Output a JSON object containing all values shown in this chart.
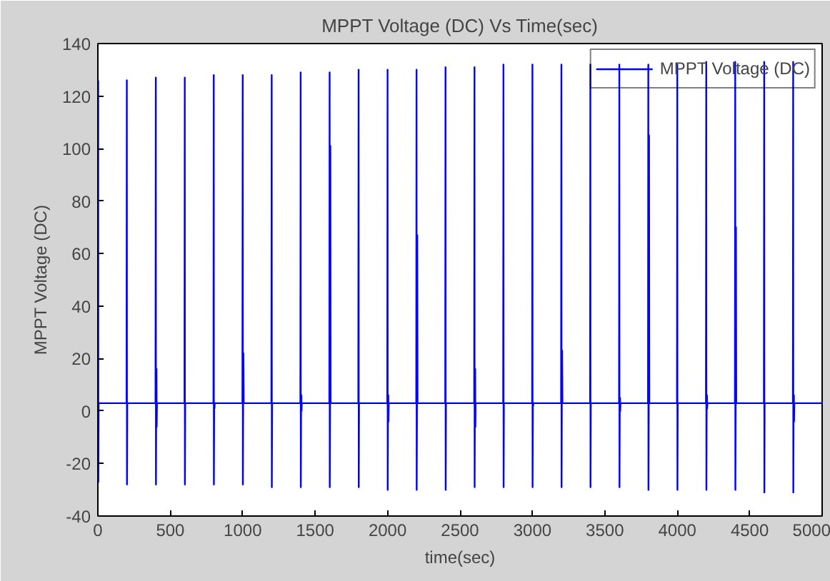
{
  "chart_data": {
    "type": "line",
    "title": "MPPT Voltage (DC) Vs Time(sec)",
    "xlabel": "time(sec)",
    "ylabel": "MPPT Voltage (DC)",
    "x": [
      2,
      3,
      5,
      198,
      200,
      201,
      203,
      398,
      400,
      401,
      403,
      405,
      406,
      408,
      598,
      600,
      601,
      603,
      798,
      800,
      801,
      803,
      805,
      807,
      998,
      1000,
      1001,
      1003,
      1005,
      1007,
      1198,
      1200,
      1201,
      1203,
      1398,
      1400,
      1401,
      1403,
      1405,
      1406,
      1408,
      1598,
      1600,
      1601,
      1603,
      1605,
      1607,
      1798,
      1800,
      1801,
      1803,
      1998,
      2000,
      2001,
      2003,
      2005,
      2006,
      2008,
      2198,
      2200,
      2201,
      2203,
      2205,
      2207,
      2398,
      2400,
      2401,
      2403,
      2598,
      2600,
      2601,
      2603,
      2605,
      2606,
      2608,
      2798,
      2800,
      2801,
      2803,
      2998,
      3000,
      3001,
      3003,
      3005,
      3007,
      3198,
      3200,
      3201,
      3203,
      3205,
      3207,
      3398,
      3400,
      3401,
      3403,
      3598,
      3600,
      3601,
      3603,
      3605,
      3606,
      3608,
      3798,
      3800,
      3801,
      3803,
      3805,
      3807,
      3998,
      4000,
      4001,
      4003,
      4198,
      4200,
      4201,
      4203,
      4205,
      4206,
      4208,
      4398,
      4400,
      4401,
      4403,
      4405,
      4407,
      4598,
      4600,
      4601,
      4603,
      4798,
      4800,
      4801,
      4803,
      4805,
      4806,
      4808,
      5000
    ],
    "series": [
      {
        "name": "MPPT Voltage (DC)",
        "color": "#0000ff",
        "values": [
          126,
          -27,
          3,
          3,
          126,
          -28,
          3,
          3,
          127,
          -28,
          3,
          16,
          -6,
          3,
          3,
          127,
          -28,
          3,
          3,
          128,
          -28,
          3,
          1,
          3,
          3,
          128,
          -28,
          3,
          22,
          3,
          3,
          128,
          -29,
          3,
          3,
          129,
          -29,
          3,
          6,
          0,
          3,
          3,
          129,
          -29,
          3,
          101,
          3,
          3,
          130,
          -29,
          3,
          3,
          130,
          -30,
          3,
          6,
          -4,
          3,
          3,
          130,
          -30,
          3,
          67,
          3,
          3,
          131,
          -30,
          3,
          3,
          131,
          -29,
          3,
          16,
          -6,
          3,
          3,
          132,
          -29,
          3,
          3,
          132,
          -29,
          3,
          2,
          3,
          3,
          132,
          -29,
          3,
          23,
          3,
          3,
          132,
          -29,
          3,
          3,
          132,
          -29,
          3,
          5,
          0,
          3,
          3,
          132,
          -30,
          3,
          105,
          3,
          3,
          132,
          -30,
          3,
          3,
          133,
          -30,
          3,
          6,
          1,
          3,
          3,
          133,
          -30,
          3,
          70,
          3,
          3,
          133,
          -31,
          3,
          3,
          133,
          -31,
          3,
          6,
          -4,
          3,
          3
        ]
      }
    ],
    "xlim": [
      0,
      5000
    ],
    "xticks": [
      0,
      500,
      1000,
      1500,
      2000,
      2500,
      3000,
      3500,
      4000,
      4500,
      5000
    ],
    "ylim": [
      -40,
      140
    ],
    "yticks": [
      -40,
      -20,
      0,
      20,
      40,
      60,
      80,
      100,
      120,
      140
    ],
    "grid": false,
    "legend": "top right"
  }
}
